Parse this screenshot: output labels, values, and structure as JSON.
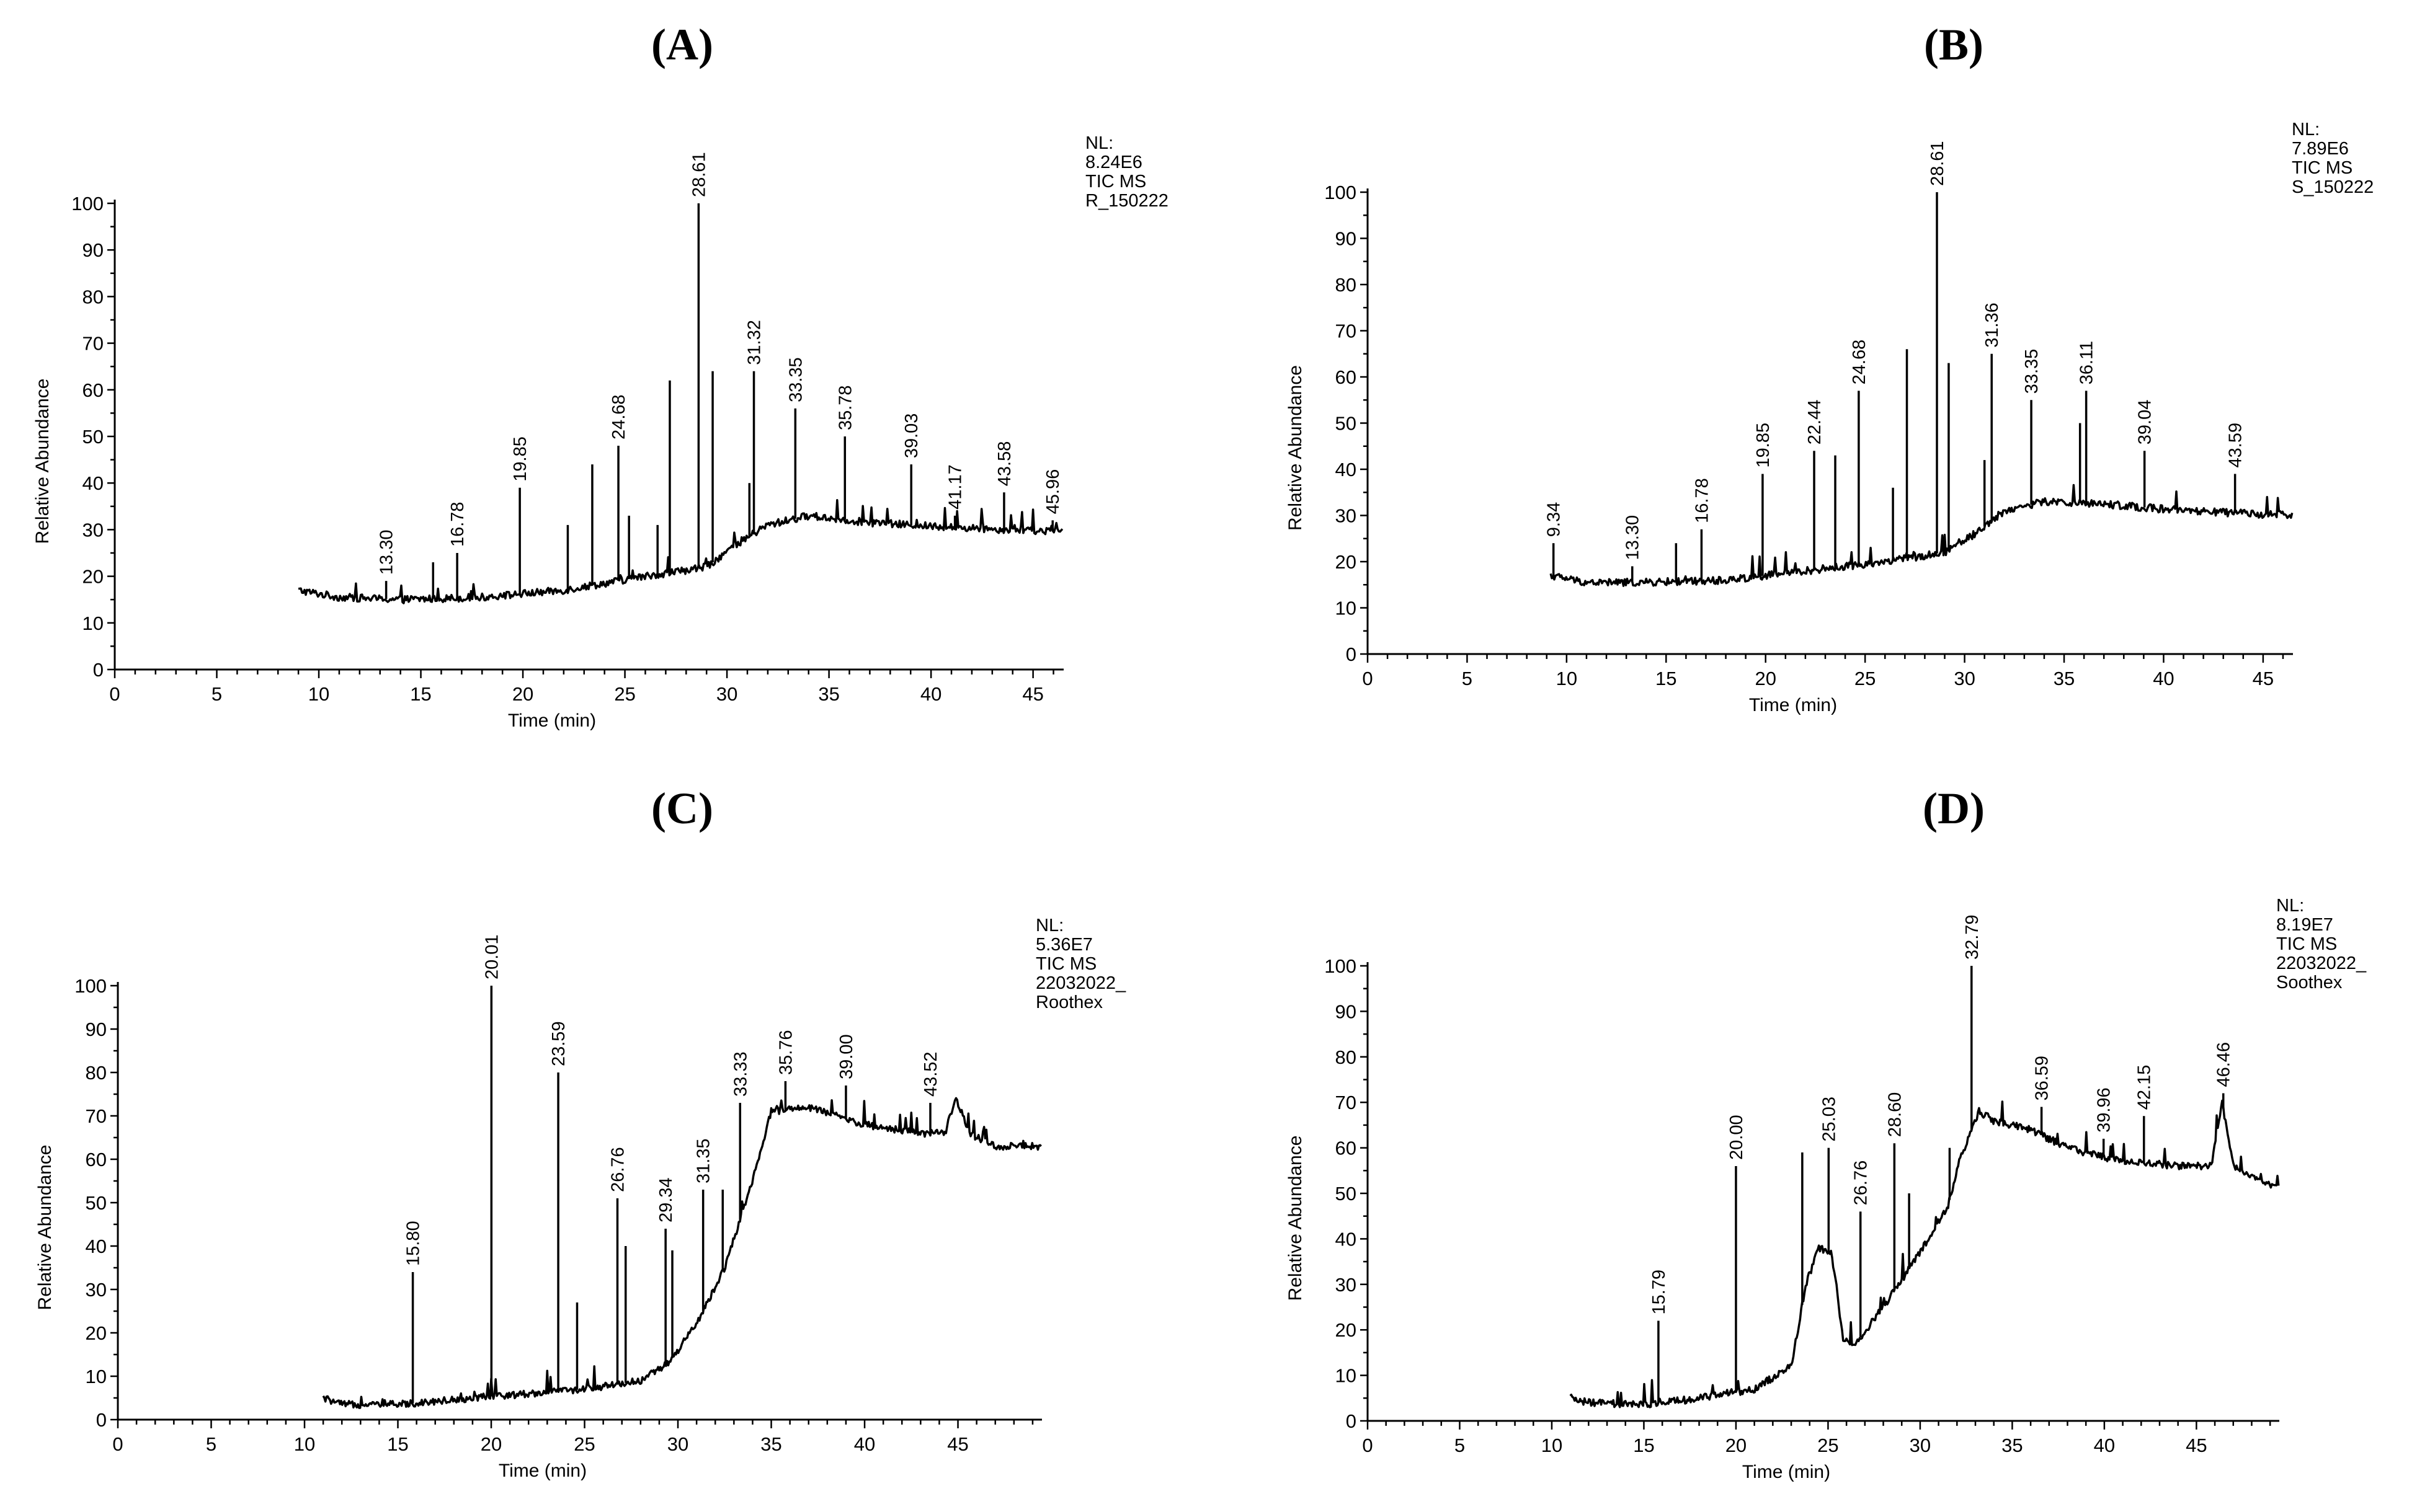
{
  "chart_data": [
    {
      "type": "line",
      "panel_label": "(A)",
      "nl_info": [
        "NL:",
        "8.24E6",
        "TIC MS",
        "R_150222"
      ],
      "xlabel": "Time (min)",
      "ylabel": "Relative Abundance",
      "xlim": [
        0,
        46.5
      ],
      "ylim": [
        0,
        100
      ],
      "x_ticks": [
        0,
        5,
        10,
        15,
        20,
        25,
        30,
        35,
        40,
        45
      ],
      "y_ticks": [
        0,
        10,
        20,
        30,
        40,
        50,
        60,
        70,
        80,
        90,
        100
      ],
      "trace_start": 9,
      "trace_end": 46.5,
      "baseline": [
        [
          9,
          17
        ],
        [
          11,
          15.5
        ],
        [
          14,
          15
        ],
        [
          18,
          15.5
        ],
        [
          22,
          17
        ],
        [
          26,
          20
        ],
        [
          29,
          22
        ],
        [
          30.5,
          27
        ],
        [
          32,
          31
        ],
        [
          34,
          33
        ],
        [
          37,
          31.5
        ],
        [
          41,
          30.5
        ],
        [
          46.5,
          29.5
        ]
      ],
      "peaks": [
        {
          "x": 13.3,
          "y": 19,
          "label": "13.30"
        },
        {
          "x": 15.6,
          "y": 23
        },
        {
          "x": 16.78,
          "y": 25,
          "label": "16.78"
        },
        {
          "x": 19.85,
          "y": 39,
          "label": "19.85"
        },
        {
          "x": 22.2,
          "y": 31
        },
        {
          "x": 23.4,
          "y": 44
        },
        {
          "x": 24.68,
          "y": 48,
          "label": "24.68"
        },
        {
          "x": 25.2,
          "y": 33
        },
        {
          "x": 26.6,
          "y": 31
        },
        {
          "x": 27.2,
          "y": 62
        },
        {
          "x": 28.61,
          "y": 100,
          "label": "28.61"
        },
        {
          "x": 29.3,
          "y": 64
        },
        {
          "x": 31.1,
          "y": 40
        },
        {
          "x": 31.32,
          "y": 64,
          "label": "31.32"
        },
        {
          "x": 33.35,
          "y": 56,
          "label": "33.35"
        },
        {
          "x": 35.78,
          "y": 50,
          "label": "35.78"
        },
        {
          "x": 39.03,
          "y": 44,
          "label": "39.03"
        },
        {
          "x": 41.17,
          "y": 33,
          "label": "41.17"
        },
        {
          "x": 43.58,
          "y": 38,
          "label": "43.58"
        },
        {
          "x": 45.96,
          "y": 32,
          "label": "45.96"
        }
      ]
    },
    {
      "type": "line",
      "panel_label": "(B)",
      "nl_info": [
        "NL:",
        "7.89E6",
        "TIC MS",
        "S_150222"
      ],
      "xlabel": "Time (min)",
      "ylabel": "Relative Abundance",
      "xlim": [
        0,
        46.5
      ],
      "ylim": [
        0,
        100
      ],
      "x_ticks": [
        0,
        5,
        10,
        15,
        20,
        25,
        30,
        35,
        40,
        45
      ],
      "y_ticks": [
        0,
        10,
        20,
        30,
        40,
        50,
        60,
        70,
        80,
        90,
        100
      ],
      "trace_start": 9.2,
      "trace_end": 46.5,
      "baseline": [
        [
          9.2,
          17
        ],
        [
          11,
          15.5
        ],
        [
          14,
          15.5
        ],
        [
          18,
          16
        ],
        [
          22,
          18
        ],
        [
          26,
          20
        ],
        [
          29,
          22
        ],
        [
          30.5,
          26
        ],
        [
          32,
          31
        ],
        [
          34,
          33
        ],
        [
          37,
          32.5
        ],
        [
          41,
          31
        ],
        [
          46.5,
          30
        ]
      ],
      "peaks": [
        {
          "x": 9.34,
          "y": 24,
          "label": "9.34"
        },
        {
          "x": 13.3,
          "y": 19,
          "label": "13.30"
        },
        {
          "x": 15.5,
          "y": 24
        },
        {
          "x": 16.78,
          "y": 27,
          "label": "16.78"
        },
        {
          "x": 19.85,
          "y": 39,
          "label": "19.85"
        },
        {
          "x": 22.44,
          "y": 44,
          "label": "22.44"
        },
        {
          "x": 23.5,
          "y": 43
        },
        {
          "x": 24.68,
          "y": 57,
          "label": "24.68"
        },
        {
          "x": 26.4,
          "y": 36
        },
        {
          "x": 27.1,
          "y": 66
        },
        {
          "x": 28.61,
          "y": 100,
          "label": "28.61"
        },
        {
          "x": 29.2,
          "y": 63
        },
        {
          "x": 31.0,
          "y": 42
        },
        {
          "x": 31.36,
          "y": 65,
          "label": "31.36"
        },
        {
          "x": 33.35,
          "y": 55,
          "label": "33.35"
        },
        {
          "x": 35.8,
          "y": 50
        },
        {
          "x": 36.11,
          "y": 57,
          "label": "36.11"
        },
        {
          "x": 39.04,
          "y": 44,
          "label": "39.04"
        },
        {
          "x": 43.59,
          "y": 39,
          "label": "43.59"
        }
      ]
    },
    {
      "type": "line",
      "panel_label": "(C)",
      "nl_info": [
        "NL:",
        "5.36E7",
        "TIC MS",
        "22032022_",
        "Roothex"
      ],
      "xlabel": "Time (min)",
      "ylabel": "Relative Abundance",
      "xlim": [
        0,
        49.5
      ],
      "ylim": [
        0,
        100
      ],
      "x_ticks": [
        0,
        5,
        10,
        15,
        20,
        25,
        30,
        35,
        40,
        45
      ],
      "y_ticks": [
        0,
        10,
        20,
        30,
        40,
        50,
        60,
        70,
        80,
        90,
        100
      ],
      "trace_start": 11,
      "trace_end": 49.5,
      "baseline": [
        [
          11,
          5
        ],
        [
          12,
          3.5
        ],
        [
          15,
          3.5
        ],
        [
          19,
          5
        ],
        [
          22,
          6
        ],
        [
          25,
          7
        ],
        [
          28,
          9
        ],
        [
          29.5,
          13
        ],
        [
          31,
          22
        ],
        [
          32.5,
          35
        ],
        [
          34,
          55
        ],
        [
          35,
          71
        ],
        [
          37,
          72
        ],
        [
          40,
          68
        ],
        [
          43,
          66
        ],
        [
          44.3,
          66
        ],
        [
          44.9,
          74
        ],
        [
          45.6,
          66
        ],
        [
          47,
          63
        ],
        [
          49.5,
          63
        ]
      ],
      "peaks": [
        {
          "x": 15.8,
          "y": 34,
          "label": "15.80"
        },
        {
          "x": 20.01,
          "y": 100,
          "label": "20.01"
        },
        {
          "x": 23.59,
          "y": 80,
          "label": "23.59"
        },
        {
          "x": 24.6,
          "y": 27
        },
        {
          "x": 26.76,
          "y": 51,
          "label": "26.76"
        },
        {
          "x": 27.2,
          "y": 40
        },
        {
          "x": 29.34,
          "y": 44,
          "label": "29.34"
        },
        {
          "x": 29.7,
          "y": 39
        },
        {
          "x": 31.35,
          "y": 53,
          "label": "31.35"
        },
        {
          "x": 32.4,
          "y": 53
        },
        {
          "x": 33.33,
          "y": 73,
          "label": "33.33"
        },
        {
          "x": 35.76,
          "y": 78,
          "label": "35.76"
        },
        {
          "x": 39.0,
          "y": 77,
          "label": "39.00"
        },
        {
          "x": 43.52,
          "y": 73,
          "label": "43.52"
        }
      ]
    },
    {
      "type": "line",
      "panel_label": "(D)",
      "nl_info": [
        "NL:",
        "8.19E7",
        "TIC MS",
        "22032022_",
        "Soothex"
      ],
      "xlabel": "Time (min)",
      "ylabel": "Relative Abundance",
      "xlim": [
        0,
        49.5
      ],
      "ylim": [
        0,
        100
      ],
      "x_ticks": [
        0,
        5,
        10,
        15,
        20,
        25,
        30,
        35,
        40,
        45
      ],
      "y_ticks": [
        0,
        10,
        20,
        30,
        40,
        50,
        60,
        70,
        80,
        90,
        100
      ],
      "trace_start": 11,
      "trace_end": 49.5,
      "baseline": [
        [
          11,
          5
        ],
        [
          12,
          4
        ],
        [
          15,
          3.5
        ],
        [
          18,
          5
        ],
        [
          21,
          7
        ],
        [
          23,
          12
        ],
        [
          23.8,
          30
        ],
        [
          24.5,
          38
        ],
        [
          25.2,
          37
        ],
        [
          25.8,
          18
        ],
        [
          26.5,
          17
        ],
        [
          28,
          25
        ],
        [
          30,
          37
        ],
        [
          31.5,
          47
        ],
        [
          32.2,
          58
        ],
        [
          33.2,
          68
        ],
        [
          34,
          66
        ],
        [
          36,
          64
        ],
        [
          38,
          60
        ],
        [
          41,
          57
        ],
        [
          44,
          56
        ],
        [
          45.8,
          56
        ],
        [
          46.4,
          70
        ],
        [
          47,
          56
        ],
        [
          49.5,
          51
        ]
      ],
      "peaks": [
        {
          "x": 15.79,
          "y": 22,
          "label": "15.79"
        },
        {
          "x": 20.0,
          "y": 56,
          "label": "20.00"
        },
        {
          "x": 23.6,
          "y": 59
        },
        {
          "x": 25.03,
          "y": 60,
          "label": "25.03"
        },
        {
          "x": 26.76,
          "y": 46,
          "label": "26.76"
        },
        {
          "x": 28.6,
          "y": 61,
          "label": "28.60"
        },
        {
          "x": 29.4,
          "y": 50
        },
        {
          "x": 31.6,
          "y": 60
        },
        {
          "x": 32.79,
          "y": 100,
          "label": "32.79"
        },
        {
          "x": 36.59,
          "y": 69,
          "label": "36.59"
        },
        {
          "x": 39.96,
          "y": 62,
          "label": "39.96"
        },
        {
          "x": 42.15,
          "y": 67,
          "label": "42.15"
        },
        {
          "x": 46.46,
          "y": 72,
          "label": "46.46"
        }
      ]
    }
  ]
}
